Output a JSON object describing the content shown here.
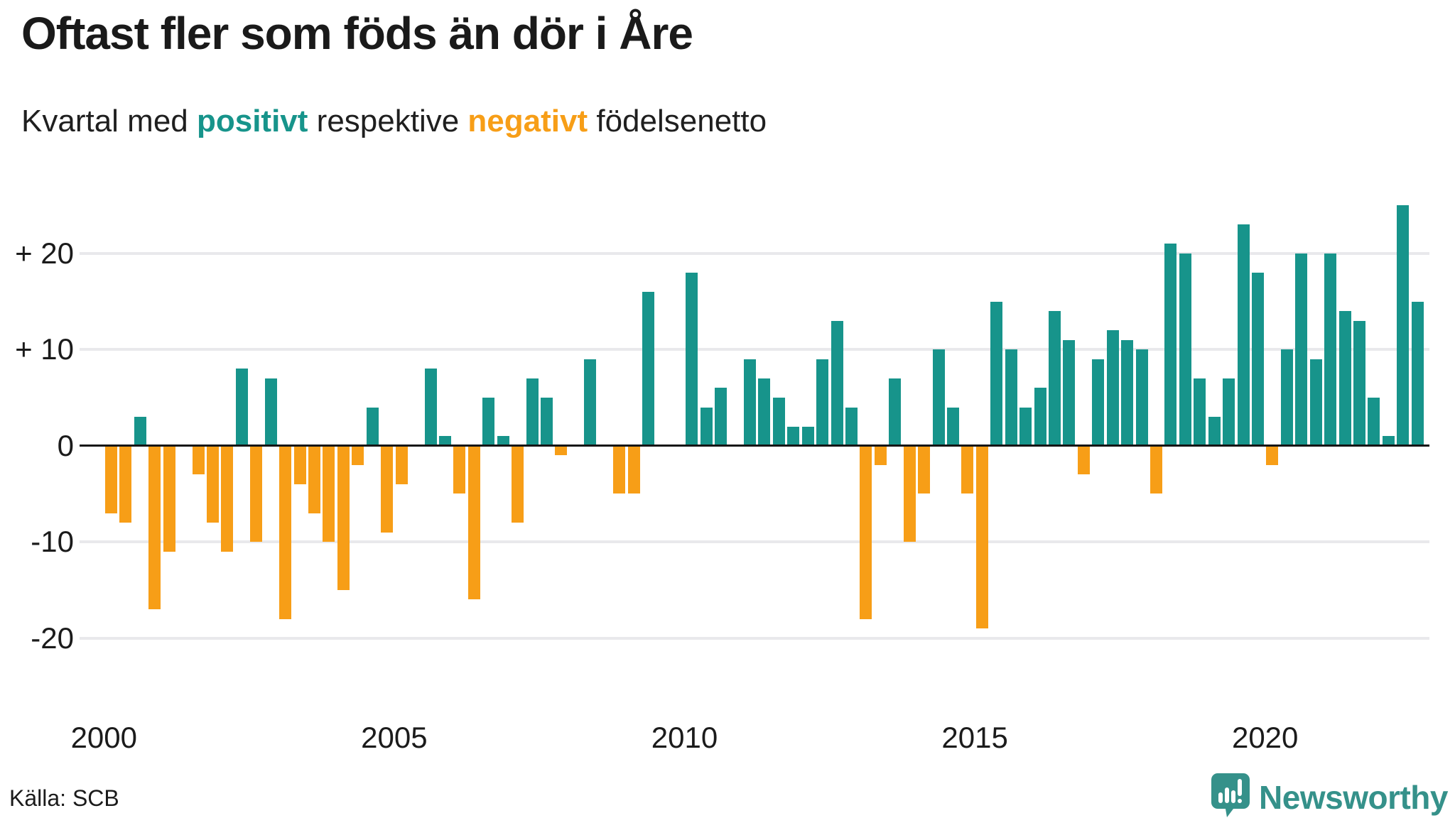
{
  "title": "Oftast fler som föds än dör i Åre",
  "subtitle": {
    "prefix": "Kvartal med ",
    "positive_word": "positivt",
    "middle": " respektive ",
    "negative_word": "negativt",
    "suffix": " födelsenetto"
  },
  "source": "Källa: SCB",
  "logo": {
    "text": "Newsworthy",
    "icon": "speech-bubble-bar-chart"
  },
  "colors": {
    "positive": "#17948B",
    "negative": "#F79E17",
    "title": "#1A1A1A",
    "subtitle_text": "#1F1F1F",
    "grid": "#E9E9EC",
    "zero_line": "#151515",
    "tick_text": "#1B1B1B",
    "logo": "#35918A",
    "background": "#FFFFFF"
  },
  "chart_data": {
    "type": "bar",
    "title": "Kvartal med positivt respektive negativt födelsenetto",
    "xlabel": "",
    "ylabel": "",
    "legend_position": "none",
    "grid": true,
    "y_gridlines": [
      20,
      10,
      0,
      -10,
      -20
    ],
    "ylim": [
      -20,
      25
    ],
    "y_ticks": [
      {
        "label": "+ 20",
        "value": 20
      },
      {
        "label": "+ 10",
        "value": 10
      },
      {
        "label": "0",
        "value": 0
      },
      {
        "label": "-10",
        "value": -10
      },
      {
        "label": "-20",
        "value": -20
      }
    ],
    "x_ticks": [
      {
        "label": "2000",
        "year": 2000
      },
      {
        "label": "2005",
        "year": 2005
      },
      {
        "label": "2010",
        "year": 2010
      },
      {
        "label": "2015",
        "year": 2015
      },
      {
        "label": "2020",
        "year": 2020
      }
    ],
    "series": [
      {
        "name": "födelsenetto",
        "points": [
          {
            "t": "2000 Q1",
            "v": -7
          },
          {
            "t": "2000 Q2",
            "v": -8
          },
          {
            "t": "2000 Q3",
            "v": 3
          },
          {
            "t": "2000 Q4",
            "v": -17
          },
          {
            "t": "2001 Q1",
            "v": -11
          },
          {
            "t": "2001 Q2",
            "v": 0
          },
          {
            "t": "2001 Q3",
            "v": -3
          },
          {
            "t": "2001 Q4",
            "v": -8
          },
          {
            "t": "2002 Q1",
            "v": -11
          },
          {
            "t": "2002 Q2",
            "v": 8
          },
          {
            "t": "2002 Q3",
            "v": -10
          },
          {
            "t": "2002 Q4",
            "v": 7
          },
          {
            "t": "2003 Q1",
            "v": -18
          },
          {
            "t": "2003 Q2",
            "v": -4
          },
          {
            "t": "2003 Q3",
            "v": -7
          },
          {
            "t": "2003 Q4",
            "v": -10
          },
          {
            "t": "2004 Q1",
            "v": -15
          },
          {
            "t": "2004 Q2",
            "v": -2
          },
          {
            "t": "2004 Q3",
            "v": 4
          },
          {
            "t": "2004 Q4",
            "v": -9
          },
          {
            "t": "2005 Q1",
            "v": -4
          },
          {
            "t": "2005 Q2",
            "v": 0
          },
          {
            "t": "2005 Q3",
            "v": 8
          },
          {
            "t": "2005 Q4",
            "v": 1
          },
          {
            "t": "2006 Q1",
            "v": -5
          },
          {
            "t": "2006 Q2",
            "v": -16
          },
          {
            "t": "2006 Q3",
            "v": 5
          },
          {
            "t": "2006 Q4",
            "v": 1
          },
          {
            "t": "2007 Q1",
            "v": -8
          },
          {
            "t": "2007 Q2",
            "v": 7
          },
          {
            "t": "2007 Q3",
            "v": 5
          },
          {
            "t": "2007 Q4",
            "v": -1
          },
          {
            "t": "2008 Q1",
            "v": 0
          },
          {
            "t": "2008 Q2",
            "v": 9
          },
          {
            "t": "2008 Q3",
            "v": 0
          },
          {
            "t": "2008 Q4",
            "v": -5
          },
          {
            "t": "2009 Q1",
            "v": -5
          },
          {
            "t": "2009 Q2",
            "v": 16
          },
          {
            "t": "2009 Q3",
            "v": 0
          },
          {
            "t": "2009 Q4",
            "v": 0
          },
          {
            "t": "2010 Q1",
            "v": 18
          },
          {
            "t": "2010 Q2",
            "v": 4
          },
          {
            "t": "2010 Q3",
            "v": 6
          },
          {
            "t": "2010 Q4",
            "v": 0
          },
          {
            "t": "2011 Q1",
            "v": 9
          },
          {
            "t": "2011 Q2",
            "v": 7
          },
          {
            "t": "2011 Q3",
            "v": 5
          },
          {
            "t": "2011 Q4",
            "v": 2
          },
          {
            "t": "2012 Q1",
            "v": 2
          },
          {
            "t": "2012 Q2",
            "v": 9
          },
          {
            "t": "2012 Q3",
            "v": 13
          },
          {
            "t": "2012 Q4",
            "v": 4
          },
          {
            "t": "2013 Q1",
            "v": -18
          },
          {
            "t": "2013 Q2",
            "v": -2
          },
          {
            "t": "2013 Q3",
            "v": 7
          },
          {
            "t": "2013 Q4",
            "v": -10
          },
          {
            "t": "2014 Q1",
            "v": -5
          },
          {
            "t": "2014 Q2",
            "v": 10
          },
          {
            "t": "2014 Q3",
            "v": 4
          },
          {
            "t": "2014 Q4",
            "v": -5
          },
          {
            "t": "2015 Q1",
            "v": -19
          },
          {
            "t": "2015 Q2",
            "v": 15
          },
          {
            "t": "2015 Q3",
            "v": 10
          },
          {
            "t": "2015 Q4",
            "v": 4
          },
          {
            "t": "2016 Q1",
            "v": 6
          },
          {
            "t": "2016 Q2",
            "v": 14
          },
          {
            "t": "2016 Q3",
            "v": 11
          },
          {
            "t": "2016 Q4",
            "v": -3
          },
          {
            "t": "2017 Q1",
            "v": 9
          },
          {
            "t": "2017 Q2",
            "v": 12
          },
          {
            "t": "2017 Q3",
            "v": 11
          },
          {
            "t": "2017 Q4",
            "v": 10
          },
          {
            "t": "2018 Q1",
            "v": -5
          },
          {
            "t": "2018 Q2",
            "v": 21
          },
          {
            "t": "2018 Q3",
            "v": 20
          },
          {
            "t": "2018 Q4",
            "v": 7
          },
          {
            "t": "2019 Q1",
            "v": 3
          },
          {
            "t": "2019 Q2",
            "v": 7
          },
          {
            "t": "2019 Q3",
            "v": 23
          },
          {
            "t": "2019 Q4",
            "v": 18
          },
          {
            "t": "2020 Q1",
            "v": -2
          },
          {
            "t": "2020 Q2",
            "v": 10
          },
          {
            "t": "2020 Q3",
            "v": 20
          },
          {
            "t": "2020 Q4",
            "v": 9
          },
          {
            "t": "2021 Q1",
            "v": 20
          },
          {
            "t": "2021 Q2",
            "v": 14
          },
          {
            "t": "2021 Q3",
            "v": 13
          },
          {
            "t": "2021 Q4",
            "v": 5
          },
          {
            "t": "2022 Q1",
            "v": 1
          },
          {
            "t": "2022 Q2",
            "v": 25
          },
          {
            "t": "2022 Q3",
            "v": 15
          }
        ]
      }
    ]
  }
}
